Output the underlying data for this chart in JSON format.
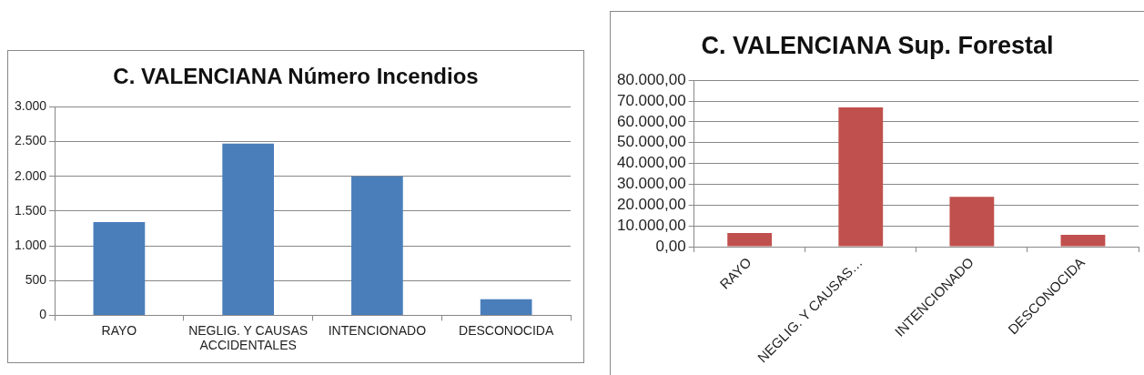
{
  "chart_data": [
    {
      "type": "bar",
      "title": "C. VALENCIANA Número Incendios",
      "categories": [
        "RAYO",
        "NEGLIG. Y CAUSAS ACCIDENTALES",
        "INTENCIONADO",
        "DESCONOCIDA"
      ],
      "values": [
        1340,
        2470,
        2000,
        230
      ],
      "color": "#4a7ebb",
      "ylim": [
        0,
        3000
      ],
      "yticks": [
        0,
        {
          "value": 500,
          "label": "500"
        },
        {
          "value": 1000,
          "label": "1.000"
        },
        {
          "value": 1500,
          "label": "1.500"
        },
        {
          "value": 2000,
          "label": "2.000"
        },
        {
          "value": 2500,
          "label": "2.500"
        },
        {
          "value": 3000,
          "label": "3.000"
        }
      ],
      "grid": "y",
      "legend": false
    },
    {
      "type": "bar",
      "title": "C. VALENCIANA Sup. Forestal",
      "categories": [
        "RAYO",
        "NEGLIG. Y CAUSAS…",
        "INTENCIONADO",
        "DESCONOCIDA"
      ],
      "values": [
        6600,
        67000,
        24000,
        5700
      ],
      "color": "#c0504d",
      "ylim": [
        0,
        80000
      ],
      "yticks": [
        {
          "value": 0,
          "label": "0,00"
        },
        {
          "value": 10000,
          "label": "10.000,00"
        },
        {
          "value": 20000,
          "label": "20.000,00"
        },
        {
          "value": 30000,
          "label": "30.000,00"
        },
        {
          "value": 40000,
          "label": "40.000,00"
        },
        {
          "value": 50000,
          "label": "50.000,00"
        },
        {
          "value": 60000,
          "label": "60.000,00"
        },
        {
          "value": 70000,
          "label": "70.000,00"
        },
        {
          "value": 80000,
          "label": "80.000,00"
        }
      ],
      "grid": "y",
      "legend": false
    }
  ]
}
